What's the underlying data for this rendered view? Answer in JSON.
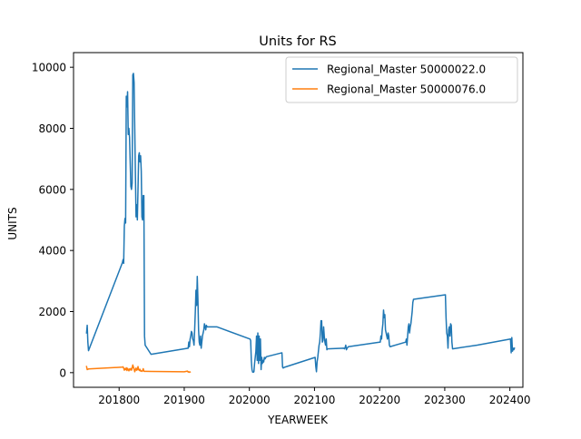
{
  "chart_data": {
    "type": "line",
    "title": "Units for RS",
    "xlabel": "YEARWEEK",
    "ylabel": "UNITS",
    "xlim": [
      201730,
      202420
    ],
    "ylim": [
      -480,
      10480
    ],
    "x_ticks": [
      {
        "value": 201800,
        "label": "201800"
      },
      {
        "value": 201900,
        "label": "201900"
      },
      {
        "value": 202000,
        "label": "202000"
      },
      {
        "value": 202100,
        "label": "202100"
      },
      {
        "value": 202200,
        "label": "202200"
      },
      {
        "value": 202300,
        "label": "202300"
      },
      {
        "value": 202400,
        "label": "202400"
      }
    ],
    "y_ticks": [
      {
        "value": 0,
        "label": "0"
      },
      {
        "value": 2000,
        "label": "2000"
      },
      {
        "value": 4000,
        "label": "4000"
      },
      {
        "value": 6000,
        "label": "6000"
      },
      {
        "value": 8000,
        "label": "8000"
      },
      {
        "value": 10000,
        "label": "10000"
      }
    ],
    "legend_position": "top-right",
    "grid": false,
    "series": [
      {
        "name": "Regional_Master 50000022.0",
        "color": "#1f77b4",
        "points": [
          [
            201750,
            1300
          ],
          [
            201751,
            1550
          ],
          [
            201752,
            1000
          ],
          [
            201753,
            720
          ],
          [
            201805,
            3600
          ],
          [
            201806,
            3700
          ],
          [
            201807,
            3580
          ],
          [
            201808,
            4800
          ],
          [
            201809,
            5050
          ],
          [
            201810,
            4900
          ],
          [
            201811,
            9050
          ],
          [
            201812,
            8700
          ],
          [
            201813,
            9200
          ],
          [
            201814,
            7800
          ],
          [
            201815,
            8000
          ],
          [
            201816,
            7700
          ],
          [
            201817,
            6900
          ],
          [
            201818,
            6100
          ],
          [
            201819,
            6000
          ],
          [
            201820,
            6200
          ],
          [
            201821,
            9750
          ],
          [
            201822,
            9800
          ],
          [
            201823,
            9500
          ],
          [
            201824,
            8000
          ],
          [
            201825,
            6500
          ],
          [
            201826,
            5100
          ],
          [
            201827,
            5500
          ],
          [
            201828,
            5000
          ],
          [
            201829,
            6000
          ],
          [
            201830,
            7100
          ],
          [
            201831,
            7200
          ],
          [
            201832,
            6900
          ],
          [
            201833,
            7100
          ],
          [
            201834,
            6600
          ],
          [
            201835,
            5100
          ],
          [
            201836,
            5000
          ],
          [
            201837,
            5800
          ],
          [
            201838,
            5800
          ],
          [
            201839,
            1200
          ],
          [
            201840,
            900
          ],
          [
            201849,
            600
          ],
          [
            201906,
            800
          ],
          [
            201907,
            1000
          ],
          [
            201908,
            850
          ],
          [
            201909,
            1100
          ],
          [
            201910,
            1200
          ],
          [
            201911,
            1350
          ],
          [
            201912,
            1300
          ],
          [
            201913,
            1100
          ],
          [
            201914,
            1050
          ],
          [
            201915,
            900
          ],
          [
            201916,
            1400
          ],
          [
            201917,
            2000
          ],
          [
            201918,
            2700
          ],
          [
            201919,
            2200
          ],
          [
            201920,
            3150
          ],
          [
            201921,
            2400
          ],
          [
            201922,
            1400
          ],
          [
            201923,
            1000
          ],
          [
            201924,
            900
          ],
          [
            201925,
            1200
          ],
          [
            201926,
            800
          ],
          [
            201927,
            1000
          ],
          [
            201928,
            1200
          ],
          [
            201929,
            1300
          ],
          [
            201930,
            1400
          ],
          [
            201931,
            1600
          ],
          [
            201932,
            1500
          ],
          [
            201933,
            1400
          ],
          [
            201934,
            1550
          ],
          [
            201935,
            1500
          ],
          [
            201950,
            1500
          ],
          [
            202001,
            1100
          ],
          [
            202002,
            1050
          ],
          [
            202003,
            400
          ],
          [
            202004,
            100
          ],
          [
            202005,
            20
          ],
          [
            202006,
            10
          ],
          [
            202007,
            30
          ],
          [
            202008,
            300
          ],
          [
            202009,
            500
          ],
          [
            202010,
            700
          ],
          [
            202011,
            1200
          ],
          [
            202012,
            400
          ],
          [
            202013,
            1300
          ],
          [
            202014,
            300
          ],
          [
            202015,
            1200
          ],
          [
            202016,
            400
          ],
          [
            202017,
            1100
          ],
          [
            202018,
            100
          ],
          [
            202019,
            500
          ],
          [
            202020,
            300
          ],
          [
            202021,
            400
          ],
          [
            202022,
            350
          ],
          [
            202023,
            500
          ],
          [
            202024,
            450
          ],
          [
            202026,
            520
          ],
          [
            202050,
            650
          ],
          [
            202051,
            180
          ],
          [
            202052,
            150
          ],
          [
            202053,
            170
          ],
          [
            202101,
            500
          ],
          [
            202102,
            200
          ],
          [
            202103,
            30
          ],
          [
            202104,
            350
          ],
          [
            202105,
            500
          ],
          [
            202106,
            700
          ],
          [
            202107,
            900
          ],
          [
            202108,
            1000
          ],
          [
            202109,
            1300
          ],
          [
            202110,
            1700
          ],
          [
            202111,
            1700
          ],
          [
            202112,
            1000
          ],
          [
            202113,
            1050
          ],
          [
            202114,
            1500
          ],
          [
            202115,
            1200
          ],
          [
            202116,
            1000
          ],
          [
            202117,
            900
          ],
          [
            202118,
            1100
          ],
          [
            202119,
            750
          ],
          [
            202120,
            780
          ],
          [
            202145,
            800
          ],
          [
            202146,
            780
          ],
          [
            202147,
            820
          ],
          [
            202148,
            900
          ],
          [
            202149,
            750
          ],
          [
            202150,
            800
          ],
          [
            202152,
            850
          ],
          [
            202201,
            1000
          ],
          [
            202202,
            1200
          ],
          [
            202203,
            1100
          ],
          [
            202204,
            1400
          ],
          [
            202205,
            1600
          ],
          [
            202206,
            2050
          ],
          [
            202207,
            1800
          ],
          [
            202208,
            1900
          ],
          [
            202209,
            1400
          ],
          [
            202210,
            1300
          ],
          [
            202211,
            1200
          ],
          [
            202212,
            1100
          ],
          [
            202213,
            1300
          ],
          [
            202214,
            1200
          ],
          [
            202215,
            900
          ],
          [
            202216,
            850
          ],
          [
            202240,
            1000
          ],
          [
            202241,
            1100
          ],
          [
            202242,
            900
          ],
          [
            202243,
            1200
          ],
          [
            202244,
            1500
          ],
          [
            202245,
            1600
          ],
          [
            202246,
            1300
          ],
          [
            202247,
            1500
          ],
          [
            202248,
            1600
          ],
          [
            202249,
            1800
          ],
          [
            202250,
            2000
          ],
          [
            202251,
            2300
          ],
          [
            202252,
            2400
          ],
          [
            202301,
            2550
          ],
          [
            202302,
            1800
          ],
          [
            202303,
            1300
          ],
          [
            202304,
            1200
          ],
          [
            202305,
            800
          ],
          [
            202306,
            1400
          ],
          [
            202307,
            1500
          ],
          [
            202308,
            1200
          ],
          [
            202309,
            1600
          ],
          [
            202310,
            1550
          ],
          [
            202311,
            1000
          ],
          [
            202312,
            780
          ],
          [
            202350,
            900
          ],
          [
            202401,
            1100
          ],
          [
            202402,
            650
          ],
          [
            202403,
            1150
          ],
          [
            202404,
            700
          ],
          [
            202405,
            800
          ],
          [
            202406,
            750
          ],
          [
            202407,
            800
          ]
        ]
      },
      {
        "name": "Regional_Master 50000076.0",
        "color": "#ff7f0e",
        "points": [
          [
            201750,
            200
          ],
          [
            201751,
            100
          ],
          [
            201752,
            110
          ],
          [
            201753,
            120
          ],
          [
            201805,
            180
          ],
          [
            201806,
            190
          ],
          [
            201807,
            150
          ],
          [
            201808,
            80
          ],
          [
            201809,
            130
          ],
          [
            201810,
            100
          ],
          [
            201811,
            160
          ],
          [
            201812,
            70
          ],
          [
            201813,
            140
          ],
          [
            201814,
            100
          ],
          [
            201815,
            60
          ],
          [
            201816,
            120
          ],
          [
            201817,
            90
          ],
          [
            201818,
            140
          ],
          [
            201819,
            80
          ],
          [
            201820,
            150
          ],
          [
            201821,
            250
          ],
          [
            201822,
            180
          ],
          [
            201823,
            120
          ],
          [
            201824,
            30
          ],
          [
            201825,
            90
          ],
          [
            201826,
            150
          ],
          [
            201827,
            80
          ],
          [
            201828,
            100
          ],
          [
            201829,
            200
          ],
          [
            201830,
            100
          ],
          [
            201831,
            70
          ],
          [
            201832,
            110
          ],
          [
            201833,
            50
          ],
          [
            201834,
            60
          ],
          [
            201835,
            40
          ],
          [
            201836,
            60
          ],
          [
            201837,
            130
          ],
          [
            201838,
            50
          ],
          [
            201839,
            40
          ],
          [
            201840,
            45
          ],
          [
            201849,
            40
          ],
          [
            201900,
            30
          ],
          [
            201905,
            50
          ],
          [
            201906,
            20
          ],
          [
            201907,
            30
          ],
          [
            201908,
            10
          ],
          [
            201909,
            20
          ]
        ]
      }
    ]
  }
}
